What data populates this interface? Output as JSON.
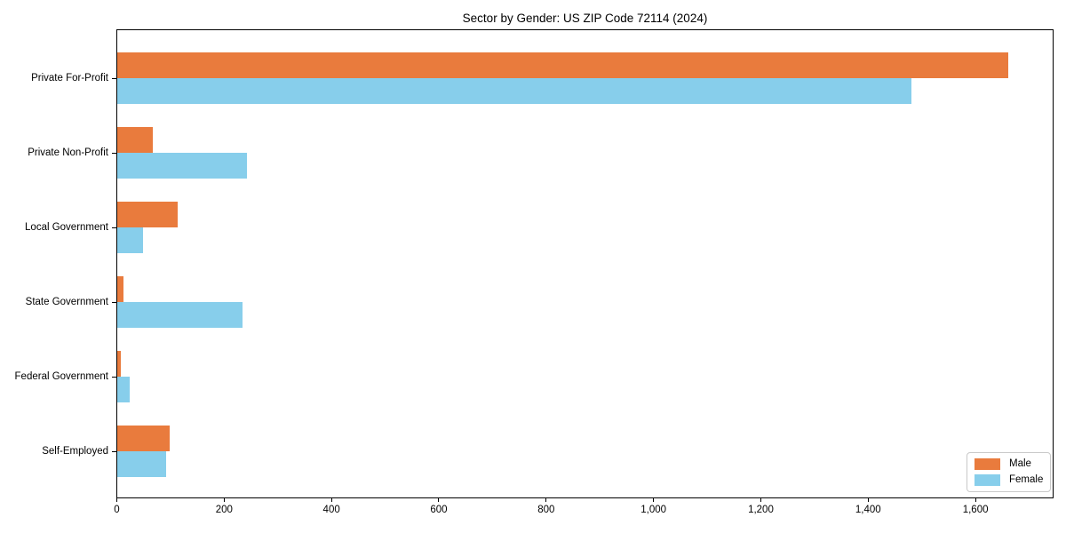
{
  "chart_data": {
    "type": "bar",
    "orientation": "horizontal",
    "title": "Sector by Gender: US ZIP Code 72114 (2024)",
    "categories": [
      "Private For-Profit",
      "Private Non-Profit",
      "Local Government",
      "State Government",
      "Federal Government",
      "Self-Employed"
    ],
    "series": [
      {
        "name": "Male",
        "color": "#e97b3d",
        "values": [
          1660,
          66,
          112,
          11,
          6,
          97
        ]
      },
      {
        "name": "Female",
        "color": "#87ceeb",
        "values": [
          1480,
          242,
          48,
          233,
          24,
          91
        ]
      }
    ],
    "xlabel": "",
    "ylabel": "",
    "xlim": [
      0,
      1743
    ],
    "x_ticks": [
      0,
      200,
      400,
      600,
      800,
      1000,
      1200,
      1400,
      1600
    ],
    "x_tick_labels": [
      "0",
      "200",
      "400",
      "600",
      "800",
      "1,000",
      "1,200",
      "1,400",
      "1,600"
    ],
    "grid": false,
    "legend": {
      "position": "lower right",
      "entries": [
        "Male",
        "Female"
      ]
    }
  }
}
